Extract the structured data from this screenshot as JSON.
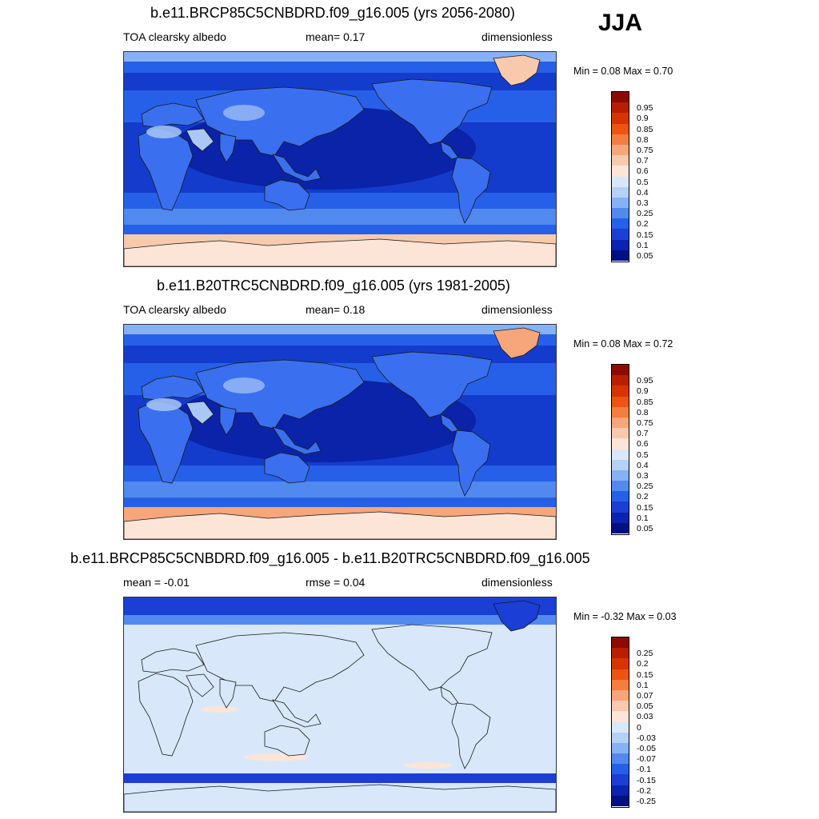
{
  "season": "JJA",
  "panels": [
    {
      "title": "b.e11.BRCP85C5CNBDRD.f09_g16.005 (yrs 2056-2080)",
      "left_label": "TOA clearsky albedo",
      "mean_label": "mean=   0.17",
      "units": "dimensionless",
      "minmax": "Min =   0.08 Max =    0.70",
      "colorbar": {
        "labels": [
          "0.95",
          "0.9",
          "0.85",
          "0.8",
          "0.75",
          "0.7",
          "0.6",
          "0.5",
          "0.4",
          "0.3",
          "0.25",
          "0.2",
          "0.15",
          "0.1",
          "0.05"
        ],
        "colors": [
          "#8c0a00",
          "#b81f00",
          "#d73400",
          "#ec5410",
          "#f57d40",
          "#f7a57a",
          "#f9c9ae",
          "#fce5d6",
          "#d8e8fa",
          "#b4d1f6",
          "#86b2f3",
          "#5289ef",
          "#2660e8",
          "#1a3ed6",
          "#0a23b0",
          "#000f82"
        ]
      },
      "map_colors": {
        "ocean": "#143ccc",
        "ocean_deep": "#0a23a8",
        "band": "#2660e8",
        "land": "#3a6ff0",
        "desert": "#a9c8f5",
        "ice": "#f9c9ae",
        "ice_hi": "#fce5d6"
      }
    },
    {
      "title": "b.e11.B20TRC5CNBDRD.f09_g16.005 (yrs 1981-2005)",
      "left_label": "TOA clearsky albedo",
      "mean_label": "mean=   0.18",
      "units": "dimensionless",
      "minmax": "Min =   0.08 Max =    0.72",
      "colorbar": {
        "labels": [
          "0.95",
          "0.9",
          "0.85",
          "0.8",
          "0.75",
          "0.7",
          "0.6",
          "0.5",
          "0.4",
          "0.3",
          "0.25",
          "0.2",
          "0.15",
          "0.1",
          "0.05"
        ],
        "colors": [
          "#8c0a00",
          "#b81f00",
          "#d73400",
          "#ec5410",
          "#f57d40",
          "#f7a57a",
          "#f9c9ae",
          "#fce5d6",
          "#d8e8fa",
          "#b4d1f6",
          "#86b2f3",
          "#5289ef",
          "#2660e8",
          "#1a3ed6",
          "#0a23b0",
          "#000f82"
        ]
      },
      "map_colors": {
        "ocean": "#143ccc",
        "ocean_deep": "#0a23a8",
        "band": "#2660e8",
        "land": "#3a6ff0",
        "desert": "#a9c8f5",
        "ice": "#f7a57a",
        "ice_hi": "#fce5d6"
      }
    },
    {
      "title": "b.e11.BRCP85C5CNBDRD.f09_g16.005 - b.e11.B20TRC5CNBDRD.f09_g16.005",
      "left_label": "mean =  -0.01",
      "mean_label": "rmse =   0.04",
      "units": "dimensionless",
      "minmax": "Min =  -0.32 Max =    0.03",
      "colorbar": {
        "labels": [
          "0.25",
          "0.2",
          "0.15",
          "0.1",
          "0.07",
          "0.05",
          "0.03",
          "0",
          "-0.03",
          "-0.05",
          "-0.07",
          "-0.1",
          "-0.15",
          "-0.2",
          "-0.25"
        ],
        "colors": [
          "#8c0a00",
          "#b81f00",
          "#d73400",
          "#ec5410",
          "#f57d40",
          "#f7a57a",
          "#f9c9ae",
          "#fce5d6",
          "#d8e8fa",
          "#b4d1f6",
          "#86b2f3",
          "#5289ef",
          "#2660e8",
          "#1a3ed6",
          "#0a23b0",
          "#000f82"
        ]
      },
      "map_colors": {
        "ocean": "#d8e8fa",
        "ocean_deep": "#d8e8fa",
        "band": "#d8e8fa",
        "land": "#d8e8fa",
        "desert": "#d8e8fa",
        "ice": "#d8e8fa",
        "ice_hi": "#d8e8fa",
        "arctic": "#1a3ed6",
        "arctic_edge": "#5289ef",
        "south": "#1a3ed6",
        "warm": "#fce5d6"
      }
    }
  ]
}
